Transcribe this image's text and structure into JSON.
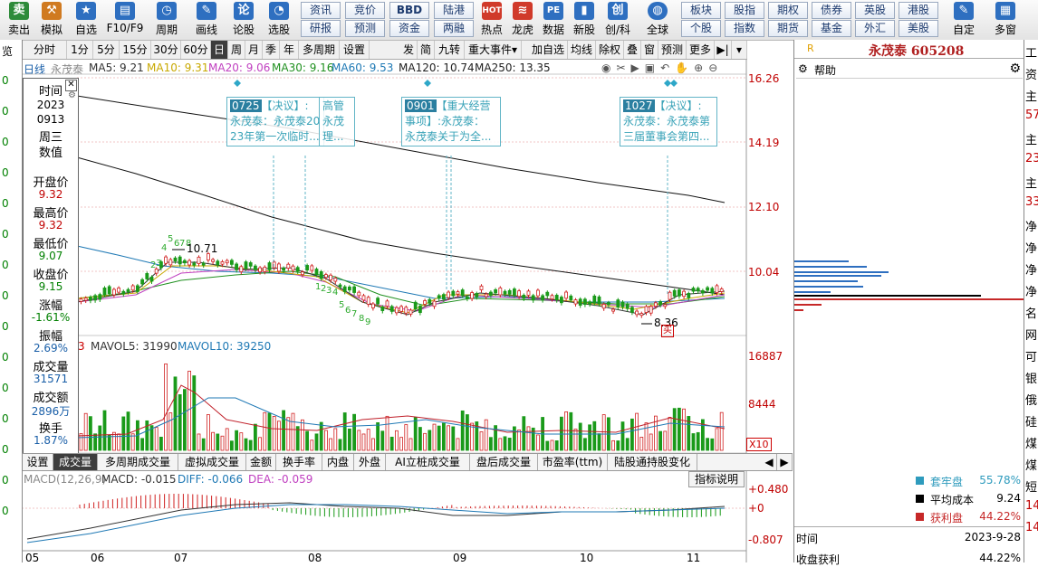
{
  "toolbar": {
    "items": [
      {
        "label": "卖出",
        "icon": "sell-icon",
        "color": "#2e8b3a"
      },
      {
        "label": "模拟",
        "icon": "simulate-icon",
        "color": "#d07a20"
      },
      {
        "label": "自选",
        "icon": "watchlist-icon",
        "color": "#2e6fc0"
      },
      {
        "label": "F10/F9",
        "icon": "f10-icon",
        "color": "#2e6fc0"
      },
      {
        "label": "周期",
        "icon": "period-icon",
        "color": "#2e6fc0"
      },
      {
        "label": "画线",
        "icon": "draw-icon",
        "color": "#2e6fc0"
      },
      {
        "label": "论股",
        "icon": "forum-icon",
        "color": "#2e6fc0"
      },
      {
        "label": "选股",
        "icon": "screener-icon",
        "color": "#2e6fc0"
      }
    ],
    "pairs": [
      {
        "top": "资讯",
        "bottom": "研报"
      },
      {
        "top": "竞价",
        "bottom": "预测"
      },
      {
        "top": "BBD",
        "bottom": "资金"
      },
      {
        "top": "陆港",
        "bottom": "两融"
      }
    ],
    "items2": [
      {
        "label": "热点",
        "icon": "hot-icon",
        "color": "#d03a2a"
      },
      {
        "label": "龙虎",
        "icon": "dragon-tiger-icon",
        "color": "#d03a2a"
      },
      {
        "label": "数据",
        "icon": "pe-icon",
        "color": "#2e6fc0"
      },
      {
        "label": "新股",
        "icon": "ipo-icon",
        "color": "#2e6fc0"
      },
      {
        "label": "创/科",
        "icon": "star-board-icon",
        "color": "#2e6fc0"
      },
      {
        "label": "全球",
        "icon": "globe-icon",
        "color": "#2e6fc0"
      }
    ],
    "pairs2": [
      {
        "top": "板块",
        "bottom": "个股"
      },
      {
        "top": "股指",
        "bottom": "指数"
      },
      {
        "top": "期权",
        "bottom": "期货"
      },
      {
        "top": "债券",
        "bottom": "基金"
      },
      {
        "top": "英股",
        "bottom": "外汇"
      },
      {
        "top": "港股",
        "bottom": "美股"
      }
    ],
    "items3": [
      {
        "label": "自定",
        "icon": "customize-icon",
        "color": "#2e6fc0"
      },
      {
        "label": "多窗",
        "icon": "multi-window-icon",
        "color": "#2e6fc0"
      }
    ]
  },
  "periodbar": {
    "periods": [
      "分时",
      "1分",
      "5分",
      "15分",
      "30分",
      "60分",
      "日",
      "周",
      "月",
      "季",
      "年",
      "多周期",
      "设置"
    ],
    "active": "日",
    "right": [
      "发",
      "简",
      "九转",
      "重大事件",
      "加自选",
      "均线",
      "除权",
      "叠",
      "窗",
      "预测",
      "更多"
    ]
  },
  "legend": {
    "type": "日线",
    "name": "永茂泰",
    "ma5": "MA5: 9.21",
    "ma10": "MA10: 9.31",
    "ma20": "MA20: 9.06",
    "ma30": "MA30: 9.16",
    "ma60": "MA60: 9.53",
    "ma120": "MA120: 10.74",
    "ma250": "MA250: 13.35"
  },
  "leftpanel": {
    "time_label": "时间",
    "year": "2023",
    "date": "0913",
    "weekday": "周三",
    "value_label": "数值",
    "rows": [
      {
        "label": "开盘价",
        "value": "9.32",
        "color": "#c00000"
      },
      {
        "label": "最高价",
        "value": "9.32",
        "color": "#c00000"
      },
      {
        "label": "最低价",
        "value": "9.07",
        "color": "#008000"
      },
      {
        "label": "收盘价",
        "value": "9.15",
        "color": "#008000"
      },
      {
        "label": "涨幅",
        "value": "-1.61%",
        "color": "#008000"
      },
      {
        "label": "振幅",
        "value": "2.69%",
        "color": "#1a5fa8"
      },
      {
        "label": "成交量",
        "value": "31571",
        "color": "#1a5fa8"
      },
      {
        "label": "成交额",
        "value": "2896万",
        "color": "#1a5fa8"
      },
      {
        "label": "换手",
        "value": "1.87%",
        "color": "#1a5fa8"
      }
    ]
  },
  "price_axis": [
    "16.26",
    "14.19",
    "12.10",
    "10.04"
  ],
  "volume": {
    "legend_prefix": "3",
    "mavol5": "MAVOL5: 31990",
    "mavol10": "MAVOL10: 39250",
    "axis": [
      "16887",
      "8444"
    ],
    "multiplier": "X10"
  },
  "annotations": [
    {
      "date": "0725",
      "lines": [
        "【决议】:",
        "永茂泰：永茂泰20",
        "23年第一次临时..."
      ],
      "extra": [
        "高管",
        "永茂",
        "理..."
      ]
    },
    {
      "date": "0901",
      "lines": [
        "【重大经营",
        "事项】:永茂泰：",
        "永茂泰关于为全..."
      ]
    },
    {
      "date": "1027",
      "lines": [
        "【决议】:",
        "永茂泰：永茂泰第",
        "三届董事会第四..."
      ]
    }
  ],
  "chart_labels": {
    "high": "10.71",
    "low": "8.36",
    "low_badge": "买"
  },
  "tabs": {
    "items": [
      "设置",
      "成交量",
      "多周期成交量",
      "虚拟成交量",
      "金额",
      "换手率",
      "内盘",
      "外盘",
      "AI立桩成交量",
      "盘后成交量",
      "市盈率(ttm)",
      "陆股通持股变化"
    ],
    "active": "成交量"
  },
  "macd": {
    "label": "MACD(12,26,9)",
    "macd": "MACD: -0.015",
    "diff": "DIFF: -0.066",
    "dea": "DEA: -0.059",
    "help_button": "指标说明",
    "axis": [
      "+0.480",
      "+0",
      "-0.807"
    ]
  },
  "dates": [
    "05",
    "06",
    "07",
    "08",
    "09",
    "10",
    "11"
  ],
  "rightpanel": {
    "title": "永茂泰 605208",
    "help": "帮助",
    "stats": [
      {
        "label": "套牢盘",
        "value": "55.78%",
        "color": "#2e9bbd"
      },
      {
        "label": "平均成本",
        "value": "9.24",
        "color": "#000000"
      },
      {
        "label": "获利盘",
        "value": "44.22%",
        "color": "#c62828"
      }
    ],
    "time_label": "时间",
    "time_value": "2023-9-28",
    "profit_label": "收盘获利",
    "profit_value": "44.22%"
  },
  "farright": {
    "texts": [
      "工",
      "资",
      "主",
      "57",
      "主",
      "23",
      "主",
      "33",
      "净",
      "净",
      "净",
      "净",
      "名",
      "网",
      "可",
      "银",
      "俄",
      "硅",
      "煤",
      "煤",
      "短",
      "14",
      "14"
    ],
    "left_texts": [
      "览",
      "0",
      "0",
      "0",
      "0",
      "0",
      "0",
      "0",
      "0",
      "0",
      "0",
      "0",
      "0",
      "0",
      "0",
      "0"
    ]
  }
}
